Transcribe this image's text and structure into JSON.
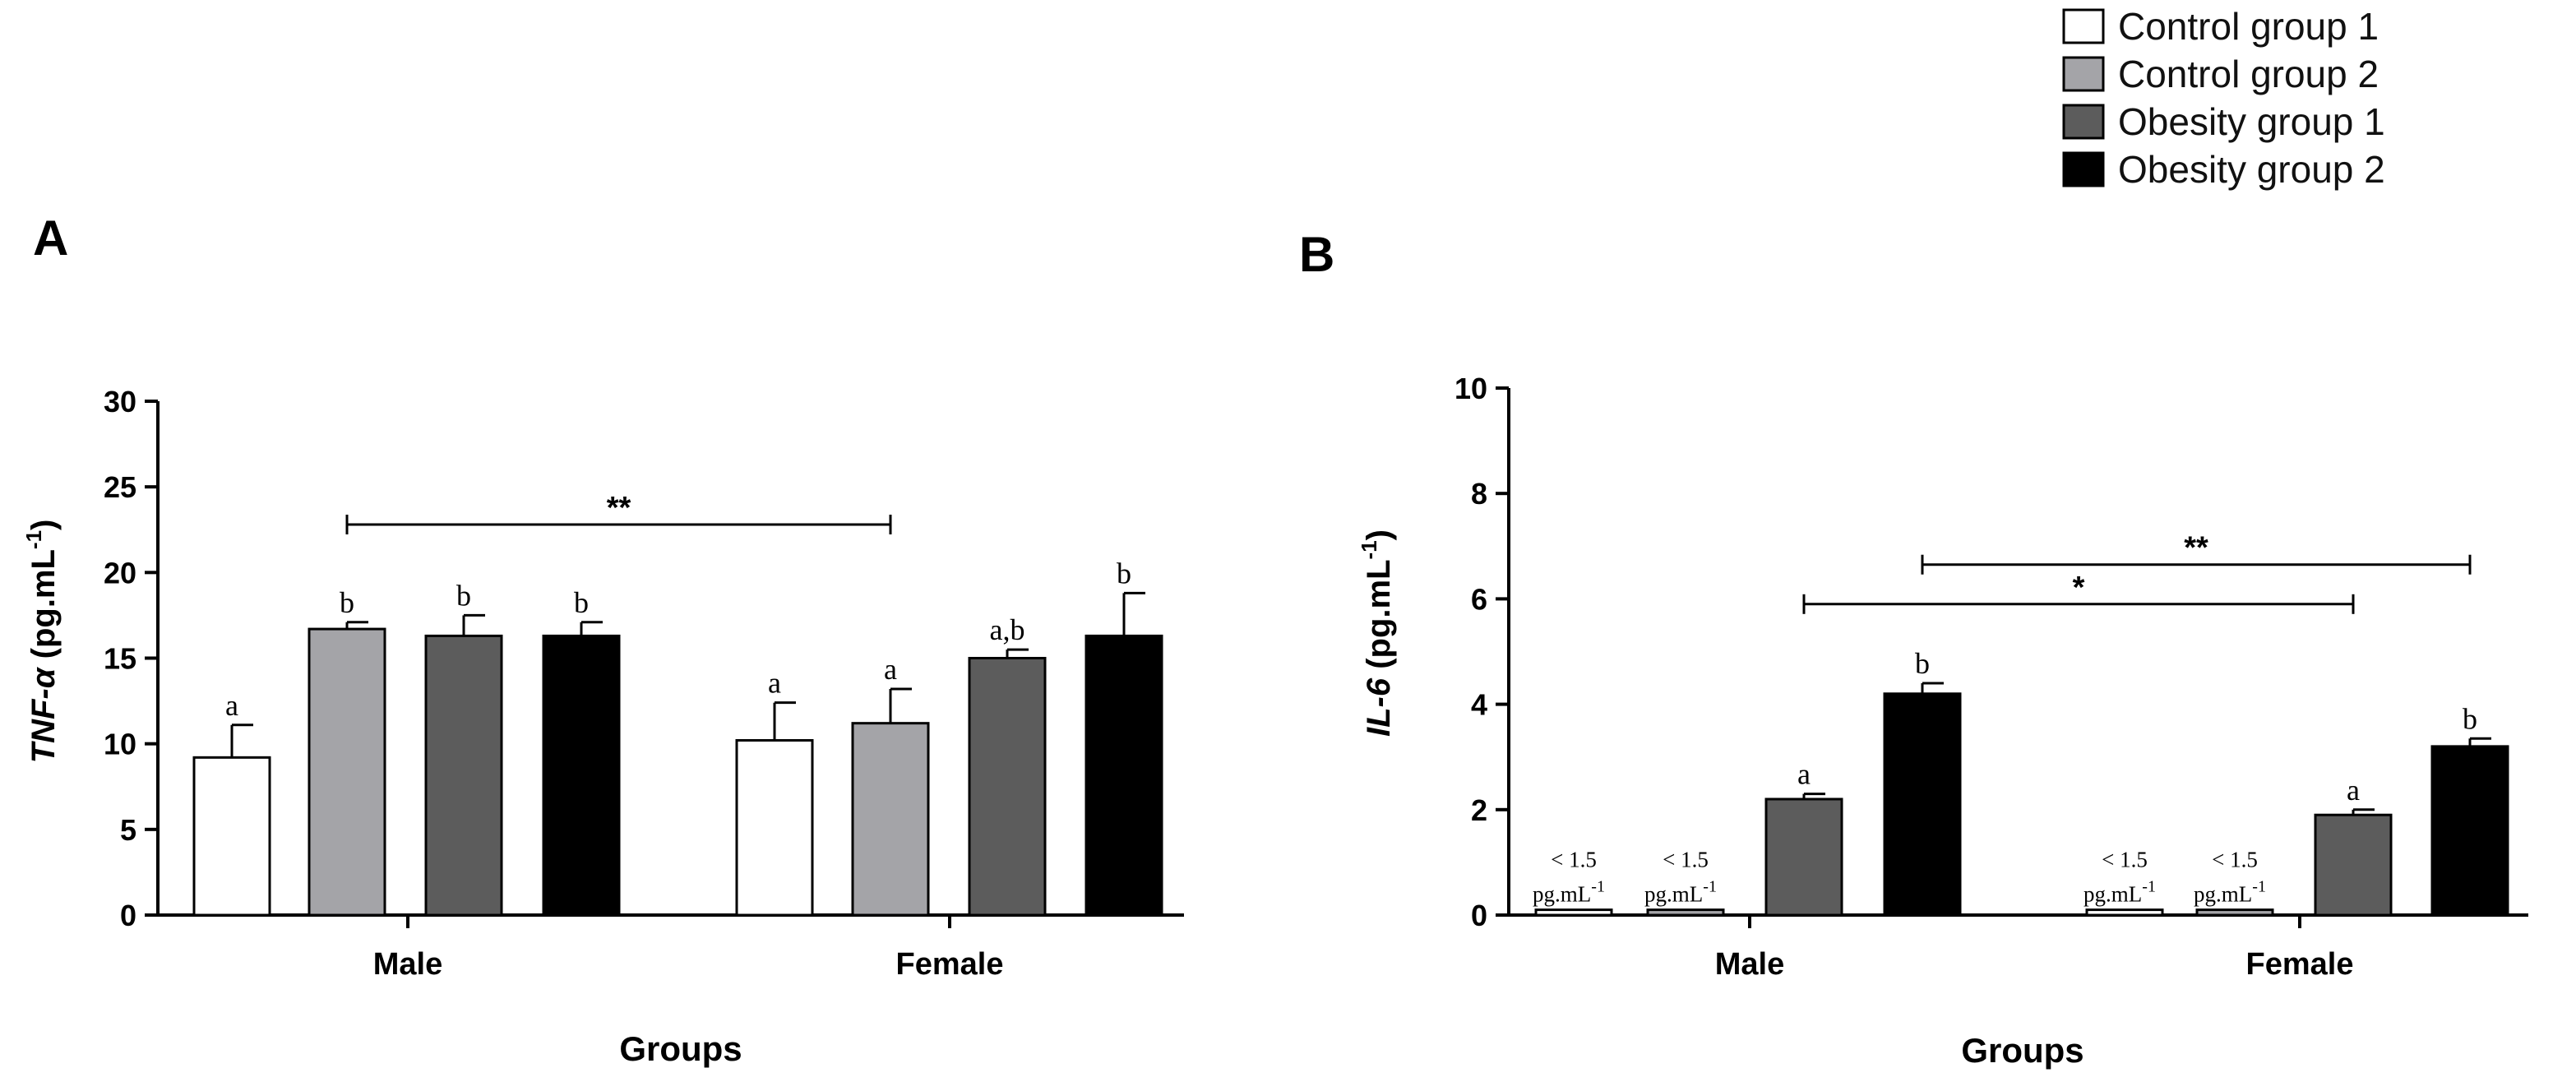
{
  "legend": [
    {
      "label": "Control group 1",
      "color": "#ffffff"
    },
    {
      "label": "Control group 2",
      "color": "#a4a4a8"
    },
    {
      "label": "Obesity group 1",
      "color": "#5c5c5c"
    },
    {
      "label": "Obesity group 2",
      "color": "#000000"
    }
  ],
  "chart_data": [
    {
      "type": "bar",
      "panel_label": "A",
      "title": "",
      "categories": [
        "Male",
        "Female"
      ],
      "xlabel": "Groups",
      "ylabel_italic": "TNF-α",
      "ylabel_rest": " (pg.mL",
      "ylabel_sup": "-1",
      "ylabel_close": ")",
      "ylim": [
        0,
        30
      ],
      "yticks": [
        0,
        5,
        10,
        15,
        20,
        25,
        30
      ],
      "ytick_labels": [
        "0",
        "5",
        "10",
        "15",
        "20",
        "25",
        "30"
      ],
      "series": [
        {
          "name": "Control group 1",
          "values": [
            9.2,
            10.2
          ],
          "errors": [
            1.9,
            2.2
          ],
          "letters": [
            "a",
            "a"
          ],
          "below_detection": [
            false,
            false
          ]
        },
        {
          "name": "Control group 2",
          "values": [
            16.7,
            11.2
          ],
          "errors": [
            0.4,
            2.0
          ],
          "letters": [
            "b",
            "a"
          ],
          "below_detection": [
            false,
            false
          ]
        },
        {
          "name": "Obesity group 1",
          "values": [
            16.3,
            15.0
          ],
          "errors": [
            1.2,
            0.5
          ],
          "letters": [
            "b",
            "a,b"
          ],
          "below_detection": [
            false,
            false
          ]
        },
        {
          "name": "Obesity group 2",
          "values": [
            16.3,
            16.3
          ],
          "errors": [
            0.8,
            2.5
          ],
          "letters": [
            "b",
            "b"
          ],
          "below_detection": [
            false,
            false
          ]
        }
      ],
      "significance": [
        {
          "label": "**",
          "from": {
            "category": 0,
            "series": 1
          },
          "to": {
            "category": 1,
            "series": 1
          },
          "y": 22.8
        }
      ],
      "lod_text": {
        "line1": "",
        "line2": "",
        "sup": ""
      }
    },
    {
      "type": "bar",
      "panel_label": "B",
      "title": "",
      "categories": [
        "Male",
        "Female"
      ],
      "xlabel": "Groups",
      "ylabel_italic": "IL-6",
      "ylabel_rest": " (pg.mL",
      "ylabel_sup": "-1",
      "ylabel_close": ")",
      "ylim": [
        0,
        10
      ],
      "yticks": [
        0,
        2,
        4,
        6,
        8,
        10
      ],
      "ytick_labels": [
        "0",
        "2",
        "4",
        "6",
        "8",
        "10"
      ],
      "series": [
        {
          "name": "Control group 1",
          "values": [
            0.1,
            0.1
          ],
          "errors": [
            0,
            0
          ],
          "letters": [
            "",
            ""
          ],
          "below_detection": [
            true,
            true
          ]
        },
        {
          "name": "Control group 2",
          "values": [
            0.1,
            0.1
          ],
          "errors": [
            0,
            0
          ],
          "letters": [
            "",
            ""
          ],
          "below_detection": [
            true,
            true
          ]
        },
        {
          "name": "Obesity group 1",
          "values": [
            2.2,
            1.9
          ],
          "errors": [
            0.1,
            0.1
          ],
          "letters": [
            "a",
            "a"
          ],
          "below_detection": [
            false,
            false
          ]
        },
        {
          "name": "Obesity group 2",
          "values": [
            4.2,
            3.2
          ],
          "errors": [
            0.2,
            0.15
          ],
          "letters": [
            "b",
            "b"
          ],
          "below_detection": [
            false,
            false
          ]
        }
      ],
      "significance": [
        {
          "label": "*",
          "from": {
            "category": 0,
            "series": 2
          },
          "to": {
            "category": 1,
            "series": 2
          },
          "y": 5.9
        },
        {
          "label": "**",
          "from": {
            "category": 0,
            "series": 3
          },
          "to": {
            "category": 1,
            "series": 3
          },
          "y": 6.65
        }
      ],
      "lod_text": {
        "line1": "< 1.5",
        "line2": "pg.mL",
        "sup": "-1"
      }
    }
  ]
}
